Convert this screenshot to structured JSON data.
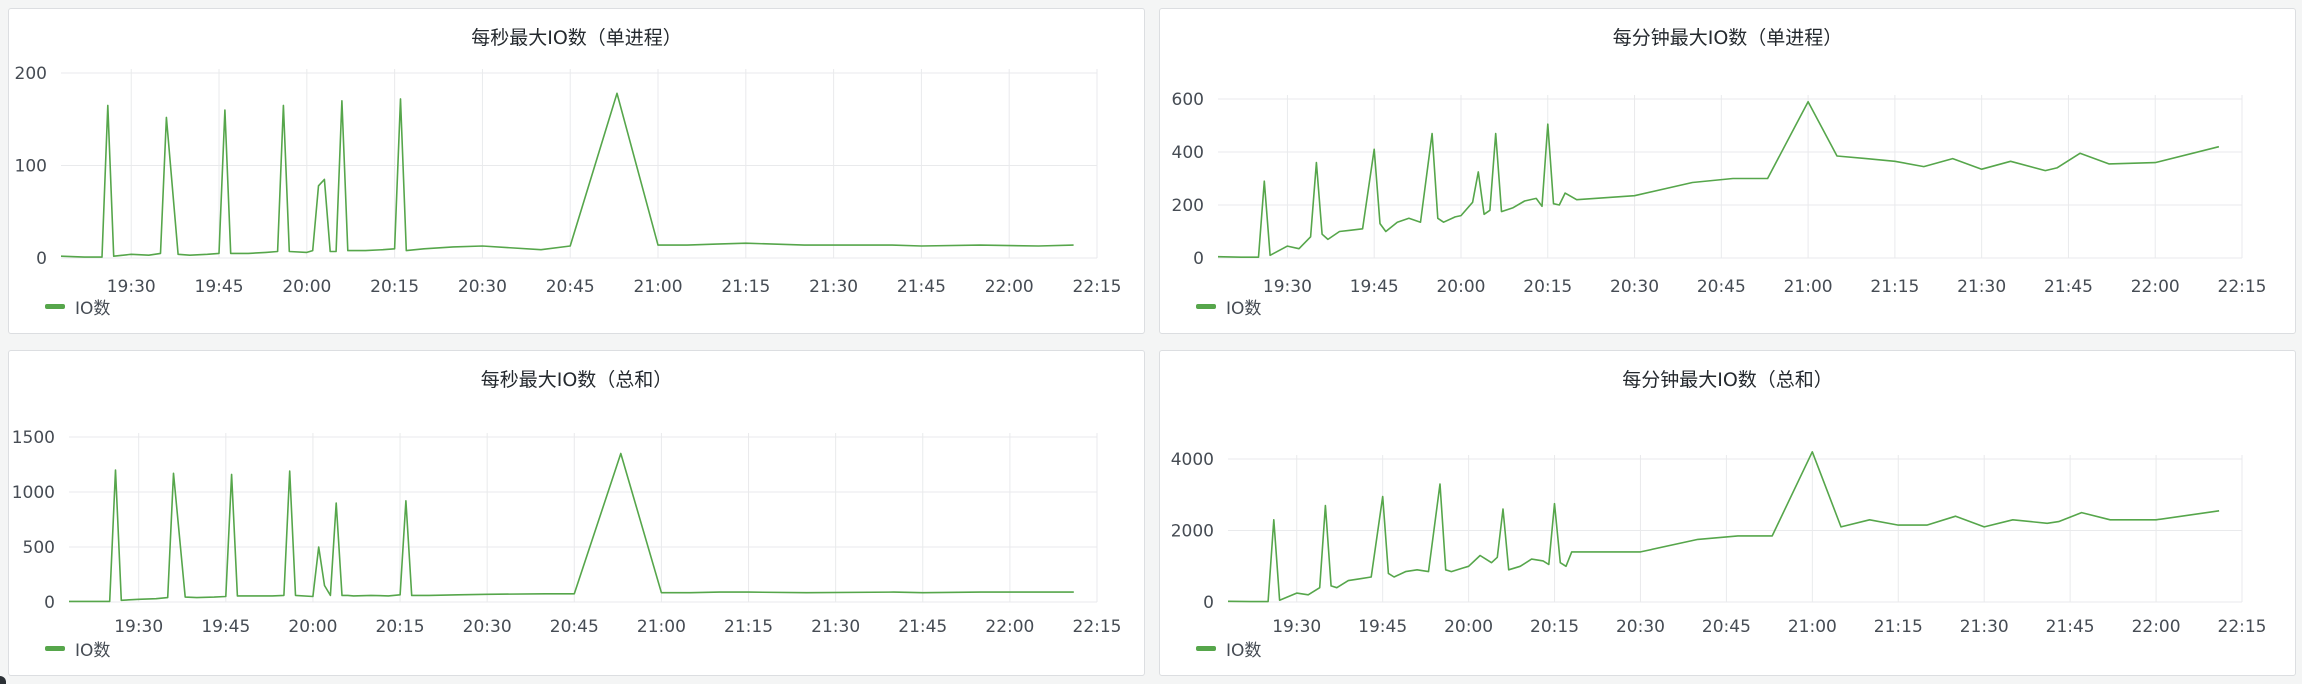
{
  "chart_data": [
    {
      "type": "line",
      "title": "每秒最大IO数（单进程）",
      "x_ticks": [
        "19:30",
        "19:45",
        "20:00",
        "20:15",
        "20:30",
        "20:45",
        "21:00",
        "21:15",
        "21:30",
        "21:45",
        "22:00",
        "22:15"
      ],
      "y_ticks": [
        0,
        100,
        200
      ],
      "ylim": [
        0,
        210
      ],
      "grid": true,
      "legend": "bottom-left",
      "series": [
        {
          "name": "IO数",
          "color": "#56a64b",
          "x": [
            "19:18",
            "19:22",
            "19:25",
            "19:26",
            "19:27",
            "19:30",
            "19:33",
            "19:35",
            "19:36",
            "19:38",
            "19:40",
            "19:43",
            "19:45",
            "19:46",
            "19:47",
            "19:50",
            "19:53",
            "19:55",
            "19:56",
            "19:57",
            "20:00",
            "20:01",
            "20:02",
            "20:03",
            "20:04",
            "20:05",
            "20:06",
            "20:07",
            "20:10",
            "20:13",
            "20:15",
            "20:16",
            "20:17",
            "20:20",
            "20:25",
            "20:30",
            "20:40",
            "20:45",
            "20:53",
            "21:00",
            "21:05",
            "21:10",
            "21:15",
            "21:25",
            "21:40",
            "21:45",
            "21:55",
            "22:05",
            "22:11"
          ],
          "y": [
            2,
            1,
            1,
            165,
            2,
            4,
            3,
            5,
            152,
            4,
            3,
            4,
            5,
            160,
            5,
            5,
            6,
            7,
            165,
            7,
            6,
            8,
            78,
            85,
            7,
            7,
            170,
            8,
            8,
            9,
            10,
            172,
            8,
            10,
            12,
            13,
            9,
            13,
            178,
            14,
            14,
            15,
            16,
            14,
            14,
            13,
            14,
            13,
            14
          ]
        }
      ]
    },
    {
      "type": "line",
      "title": "每分钟最大IO数（单进程）",
      "x_ticks": [
        "19:30",
        "19:45",
        "20:00",
        "20:15",
        "20:30",
        "20:45",
        "21:00",
        "21:15",
        "21:30",
        "21:45",
        "22:00",
        "22:15"
      ],
      "y_ticks": [
        0,
        200,
        400,
        600
      ],
      "ylim": [
        0,
        640
      ],
      "grid": true,
      "legend": "bottom-left",
      "series": [
        {
          "name": "IO数",
          "color": "#56a64b",
          "x": [
            "19:18",
            "19:22",
            "19:25",
            "19:26",
            "19:27",
            "19:30",
            "19:32",
            "19:34",
            "19:35",
            "19:36",
            "19:37",
            "19:39",
            "19:41",
            "19:43",
            "19:45",
            "19:46",
            "19:47",
            "19:49",
            "19:51",
            "19:53",
            "19:55",
            "19:56",
            "19:57",
            "19:59",
            "20:00",
            "20:02",
            "20:03",
            "20:04",
            "20:05",
            "20:06",
            "20:07",
            "20:09",
            "20:11",
            "20:13",
            "20:14",
            "20:15",
            "20:16",
            "20:17",
            "20:18",
            "20:20",
            "20:30",
            "20:40",
            "20:47",
            "20:53",
            "21:00",
            "21:05",
            "21:10",
            "21:15",
            "21:20",
            "21:25",
            "21:30",
            "21:35",
            "21:41",
            "21:43",
            "21:47",
            "21:52",
            "22:00",
            "22:11"
          ],
          "y": [
            5,
            3,
            3,
            290,
            10,
            45,
            35,
            80,
            360,
            90,
            70,
            100,
            105,
            110,
            410,
            130,
            100,
            135,
            150,
            135,
            470,
            150,
            135,
            155,
            160,
            210,
            325,
            165,
            180,
            470,
            175,
            190,
            215,
            225,
            195,
            505,
            205,
            200,
            245,
            220,
            235,
            285,
            300,
            300,
            590,
            385,
            375,
            365,
            345,
            375,
            335,
            365,
            330,
            340,
            395,
            355,
            360,
            420
          ]
        }
      ]
    },
    {
      "type": "line",
      "title": "每秒最大IO数（总和）",
      "x_ticks": [
        "19:30",
        "19:45",
        "20:00",
        "20:15",
        "20:30",
        "20:45",
        "21:00",
        "21:15",
        "21:30",
        "21:45",
        "22:00",
        "22:15"
      ],
      "y_ticks": [
        0,
        500,
        1000,
        1500
      ],
      "ylim": [
        0,
        1600
      ],
      "grid": true,
      "legend": "bottom-left",
      "series": [
        {
          "name": "IO数",
          "color": "#56a64b",
          "x": [
            "19:18",
            "19:22",
            "19:25",
            "19:26",
            "19:27",
            "19:30",
            "19:33",
            "19:35",
            "19:36",
            "19:38",
            "19:40",
            "19:43",
            "19:45",
            "19:46",
            "19:47",
            "19:50",
            "19:53",
            "19:55",
            "19:56",
            "19:57",
            "20:00",
            "20:01",
            "20:02",
            "20:03",
            "20:04",
            "20:05",
            "20:06",
            "20:07",
            "20:10",
            "20:13",
            "20:15",
            "20:16",
            "20:17",
            "20:20",
            "20:25",
            "20:30",
            "20:40",
            "20:45",
            "20:53",
            "21:00",
            "21:05",
            "21:10",
            "21:15",
            "21:25",
            "21:40",
            "21:45",
            "21:55",
            "22:05",
            "22:11"
          ],
          "y": [
            5,
            5,
            5,
            1200,
            15,
            25,
            30,
            40,
            1170,
            45,
            40,
            45,
            50,
            1160,
            55,
            55,
            55,
            60,
            1190,
            60,
            50,
            500,
            150,
            60,
            900,
            60,
            60,
            55,
            60,
            55,
            65,
            920,
            60,
            60,
            65,
            70,
            75,
            75,
            1350,
            85,
            85,
            90,
            90,
            85,
            90,
            85,
            90,
            90,
            90
          ]
        }
      ]
    },
    {
      "type": "line",
      "title": "每分钟最大IO数（总和）",
      "x_ticks": [
        "19:30",
        "19:45",
        "20:00",
        "20:15",
        "20:30",
        "20:45",
        "21:00",
        "21:15",
        "21:30",
        "21:45",
        "22:00",
        "22:15"
      ],
      "y_ticks": [
        0,
        2000,
        4000
      ],
      "ylim": [
        0,
        4600
      ],
      "grid": true,
      "legend": "bottom-left",
      "series": [
        {
          "name": "IO数",
          "color": "#56a64b",
          "x": [
            "19:18",
            "19:22",
            "19:25",
            "19:26",
            "19:27",
            "19:30",
            "19:32",
            "19:34",
            "19:35",
            "19:36",
            "19:37",
            "19:39",
            "19:41",
            "19:43",
            "19:45",
            "19:46",
            "19:47",
            "19:49",
            "19:51",
            "19:53",
            "19:55",
            "19:56",
            "19:57",
            "19:59",
            "20:00",
            "20:02",
            "20:03",
            "20:04",
            "20:05",
            "20:06",
            "20:07",
            "20:09",
            "20:11",
            "20:13",
            "20:14",
            "20:15",
            "20:16",
            "20:17",
            "20:18",
            "20:20",
            "20:30",
            "20:40",
            "20:47",
            "20:53",
            "21:00",
            "21:05",
            "21:10",
            "21:15",
            "21:20",
            "21:25",
            "21:30",
            "21:35",
            "21:41",
            "21:43",
            "21:47",
            "21:52",
            "22:00",
            "22:11"
          ],
          "y": [
            20,
            10,
            10,
            2300,
            50,
            250,
            200,
            400,
            2700,
            450,
            400,
            600,
            650,
            700,
            2950,
            800,
            700,
            850,
            900,
            850,
            3300,
            900,
            850,
            950,
            1000,
            1300,
            1200,
            1100,
            1250,
            2600,
            900,
            1000,
            1200,
            1150,
            1050,
            2750,
            1100,
            1000,
            1400,
            1400,
            1400,
            1750,
            1850,
            1850,
            4200,
            2100,
            2300,
            2150,
            2150,
            2400,
            2100,
            2300,
            2200,
            2250,
            2500,
            2300,
            2300,
            2550
          ]
        }
      ]
    }
  ]
}
